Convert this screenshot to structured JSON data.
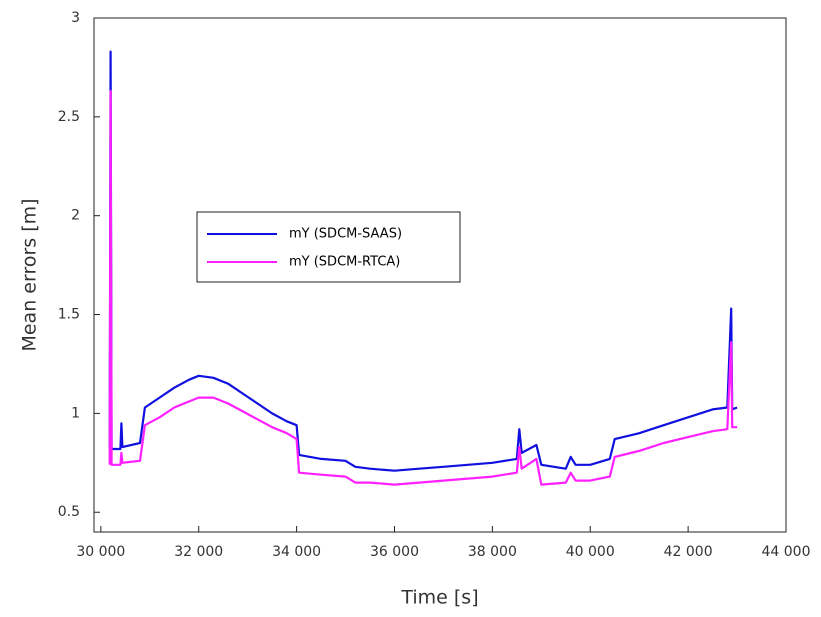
{
  "chart_data": {
    "type": "line",
    "xlabel": "Time [s]",
    "ylabel": "Mean errors [m]",
    "x": [
      30180,
      30200,
      30220,
      30400,
      30420,
      30440,
      30800,
      30900,
      31200,
      31500,
      31800,
      32000,
      32300,
      32600,
      32900,
      33200,
      33500,
      33800,
      34000,
      34050,
      34500,
      35000,
      35200,
      35500,
      36000,
      36500,
      37000,
      37500,
      38000,
      38500,
      38550,
      38600,
      38900,
      39000,
      39500,
      39600,
      39700,
      40000,
      40400,
      40500,
      41000,
      41500,
      42000,
      42500,
      42800,
      42880,
      42900,
      43000
    ],
    "series": [
      {
        "name": "mY (SDCM-SAAS)",
        "color": "#1010e0",
        "values": [
          0.82,
          2.83,
          0.82,
          0.82,
          0.95,
          0.83,
          0.85,
          1.03,
          1.08,
          1.13,
          1.17,
          1.19,
          1.18,
          1.15,
          1.1,
          1.05,
          1.0,
          0.96,
          0.94,
          0.79,
          0.77,
          0.76,
          0.73,
          0.72,
          0.71,
          0.72,
          0.73,
          0.74,
          0.75,
          0.77,
          0.92,
          0.8,
          0.84,
          0.74,
          0.72,
          0.78,
          0.74,
          0.74,
          0.77,
          0.87,
          0.9,
          0.94,
          0.98,
          1.02,
          1.03,
          1.53,
          1.02,
          1.03
        ]
      },
      {
        "name": "mY (SDCM-RTCA)",
        "color": "#ff20ff",
        "values": [
          0.74,
          2.63,
          0.74,
          0.74,
          0.8,
          0.75,
          0.76,
          0.94,
          0.98,
          1.03,
          1.06,
          1.08,
          1.08,
          1.05,
          1.01,
          0.97,
          0.93,
          0.9,
          0.87,
          0.7,
          0.69,
          0.68,
          0.65,
          0.65,
          0.64,
          0.65,
          0.66,
          0.67,
          0.68,
          0.7,
          0.83,
          0.72,
          0.77,
          0.64,
          0.65,
          0.7,
          0.66,
          0.66,
          0.68,
          0.78,
          0.81,
          0.85,
          0.88,
          0.91,
          0.92,
          1.36,
          0.93,
          0.93
        ]
      }
    ],
    "xlim": [
      29860,
      44000
    ],
    "xticks": [
      {
        "value": 30000,
        "label": "30 000"
      },
      {
        "value": 32000,
        "label": "32 000"
      },
      {
        "value": 34000,
        "label": "34 000"
      },
      {
        "value": 36000,
        "label": "36 000"
      },
      {
        "value": 38000,
        "label": "38 000"
      },
      {
        "value": 40000,
        "label": "40 000"
      },
      {
        "value": 42000,
        "label": "42 000"
      },
      {
        "value": 44000,
        "label": "44 000"
      }
    ],
    "ylim": [
      0.4,
      3
    ],
    "yticks": [
      0.5,
      1,
      1.5,
      2,
      2.5,
      3
    ],
    "grid": false,
    "legend": "upper left"
  }
}
